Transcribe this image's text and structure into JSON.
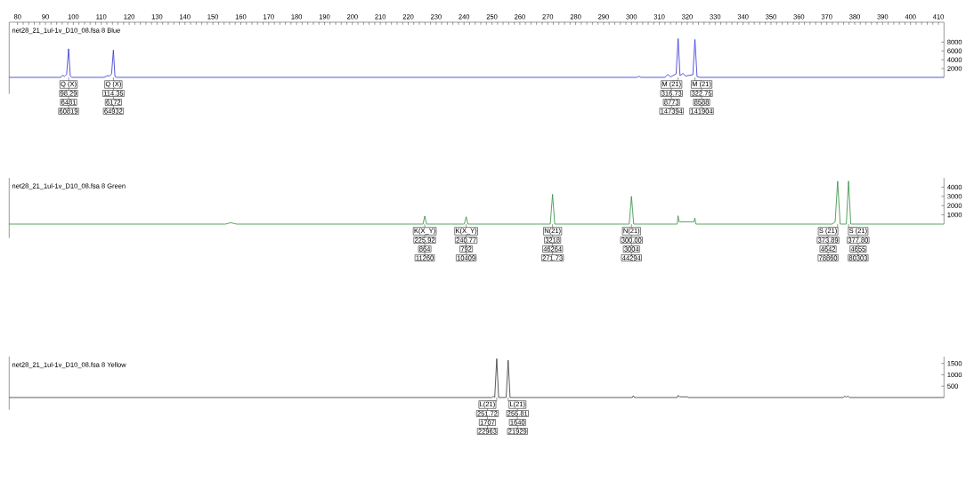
{
  "chart_data": [
    {
      "type": "line",
      "title": "net28_21_1ul-1v_D10_08.fsa  8 Blue",
      "color": "#2f2fd0",
      "marker": "none",
      "x": [
        77,
        95.5,
        96.2,
        96.8,
        97.6,
        98.29,
        98.9,
        99.5,
        111,
        112.3,
        113,
        113.7,
        114.35,
        114.9,
        115.5,
        302,
        302.6,
        303.4,
        312,
        313,
        314,
        316,
        316.73,
        317.4,
        318.5,
        319.3,
        322,
        322.75,
        323.5,
        324.5,
        412
      ],
      "values": [
        0,
        0,
        500,
        200,
        700,
        6481,
        300,
        0,
        0,
        400,
        300,
        800,
        6172,
        200,
        0,
        0,
        250,
        0,
        0,
        700,
        100,
        800,
        8773,
        400,
        900,
        300,
        600,
        8588,
        200,
        0,
        0
      ],
      "xlim": [
        77,
        412
      ],
      "xticks": [
        80,
        90,
        100,
        110,
        120,
        130,
        140,
        150,
        160,
        170,
        180,
        190,
        200,
        210,
        220,
        230,
        240,
        250,
        260,
        270,
        280,
        290,
        300,
        310,
        320,
        330,
        340,
        350,
        360,
        370,
        380,
        390,
        400,
        410
      ],
      "ylim": [
        0,
        12500
      ],
      "yticks": [
        2000,
        4000,
        6000,
        8000
      ],
      "annotations": [
        {
          "text": "Q (X)",
          "x": 98.29,
          "y": 0
        },
        {
          "text": "98.29",
          "x": 98.29,
          "y": 0
        },
        {
          "text": "6481",
          "x": 98.29,
          "y": 0
        },
        {
          "text": "60819",
          "x": 98.29,
          "y": 0
        },
        {
          "text": "Q (X)",
          "x": 114.35,
          "y": 0
        },
        {
          "text": "114.35",
          "x": 114.35,
          "y": 0
        },
        {
          "text": "6172",
          "x": 114.35,
          "y": 0
        },
        {
          "text": "64932",
          "x": 114.35,
          "y": 0
        },
        {
          "text": "M (21)",
          "x": 316.73,
          "y": 0
        },
        {
          "text": "316.73",
          "x": 316.73,
          "y": 0
        },
        {
          "text": "8773",
          "x": 316.73,
          "y": 0
        },
        {
          "text": "147394",
          "x": 316.73,
          "y": 0
        },
        {
          "text": "M (21)",
          "x": 322.75,
          "y": 0
        },
        {
          "text": "322.75",
          "x": 322.75,
          "y": 0
        },
        {
          "text": "8588",
          "x": 322.75,
          "y": 0
        },
        {
          "text": "141904",
          "x": 322.75,
          "y": 0
        }
      ]
    },
    {
      "type": "line",
      "title": "net28_21_1ul-1v_D10_08.fsa  8 Green",
      "color": "#2e8b3e",
      "marker": "none",
      "x": [
        77,
        154.5,
        156.4,
        158.5,
        225.3,
        225.92,
        226.6,
        240.1,
        240.77,
        241.4,
        270.9,
        271.73,
        272.5,
        299.2,
        300,
        300.8,
        316.4,
        316.7,
        317.1,
        322.4,
        322.7,
        323.1,
        372,
        373,
        373.89,
        374.8,
        377,
        377.8,
        378.6,
        412
      ],
      "values": [
        0,
        0,
        150,
        0,
        0,
        864,
        0,
        0,
        792,
        0,
        0,
        3218,
        0,
        0,
        3004,
        0,
        0,
        900,
        250,
        250,
        650,
        0,
        0,
        250,
        4642,
        0,
        0,
        4655,
        0,
        0
      ],
      "xlim": [
        77,
        412
      ],
      "ylim": [
        0,
        5000
      ],
      "yticks": [
        1000,
        2000,
        3000,
        4000
      ],
      "tick_labels": "y",
      "annotations": [
        {
          "text": "K(X_Y)",
          "x": 225.92,
          "y": 0
        },
        {
          "text": "225.92",
          "x": 225.92,
          "y": 0
        },
        {
          "text": "864",
          "x": 225.92,
          "y": 0
        },
        {
          "text": "11260",
          "x": 225.92,
          "y": 0
        },
        {
          "text": "K(X_Y)",
          "x": 240.77,
          "y": 0
        },
        {
          "text": "240.77",
          "x": 240.77,
          "y": 0
        },
        {
          "text": "792",
          "x": 240.77,
          "y": 0
        },
        {
          "text": "10409",
          "x": 240.77,
          "y": 0
        },
        {
          "text": "N(21)",
          "x": 271.73,
          "y": 0
        },
        {
          "text": "3218",
          "x": 271.73,
          "y": 0
        },
        {
          "text": "46264",
          "x": 271.73,
          "y": 0
        },
        {
          "text": "271.73",
          "x": 271.73,
          "y": 0
        },
        {
          "text": "N(21)",
          "x": 300.0,
          "y": 0
        },
        {
          "text": "300.00",
          "x": 300.0,
          "y": 0
        },
        {
          "text": "3004",
          "x": 300.0,
          "y": 0
        },
        {
          "text": "44294",
          "x": 300.0,
          "y": 0
        },
        {
          "text": "S (21)",
          "x": 373.89,
          "y": 0
        },
        {
          "text": "373.89",
          "x": 373.89,
          "y": 0
        },
        {
          "text": "4642",
          "x": 373.89,
          "y": 0
        },
        {
          "text": "78860",
          "x": 373.89,
          "y": 0
        },
        {
          "text": "S (21)",
          "x": 377.8,
          "y": 0
        },
        {
          "text": "377.80",
          "x": 377.8,
          "y": 0
        },
        {
          "text": "4655",
          "x": 377.8,
          "y": 0
        },
        {
          "text": "80303",
          "x": 377.8,
          "y": 0
        }
      ]
    },
    {
      "type": "line",
      "title": "net28_21_1ul-1v_D10_08.fsa  8 Yellow",
      "color": "#333333",
      "marker": "none",
      "x": [
        77,
        250,
        250.5,
        251.0,
        251.72,
        252.4,
        255.1,
        255.81,
        256.5,
        300.3,
        300.7,
        301.1,
        316.4,
        316.7,
        317.3,
        320,
        320.4,
        376,
        376.4,
        377,
        377.6,
        378.2,
        412
      ],
      "values": [
        0,
        0,
        60,
        0,
        1707,
        0,
        0,
        1640,
        0,
        0,
        80,
        0,
        0,
        90,
        30,
        30,
        0,
        0,
        60,
        20,
        60,
        0,
        0
      ],
      "xlim": [
        77,
        412
      ],
      "ylim": [
        0,
        1800
      ],
      "yticks": [
        500,
        1000,
        1500
      ],
      "tick_labels": "y",
      "annotations": [
        {
          "text": "L(21)",
          "x": 251.72,
          "y": 0
        },
        {
          "text": "251.72",
          "x": 251.72,
          "y": 0
        },
        {
          "text": "1707",
          "x": 251.72,
          "y": 0
        },
        {
          "text": "22963",
          "x": 251.72,
          "y": 0
        },
        {
          "text": "L(21)",
          "x": 255.81,
          "y": 0
        },
        {
          "text": "255.81",
          "x": 255.81,
          "y": 0
        },
        {
          "text": "1640",
          "x": 255.81,
          "y": 0
        },
        {
          "text": "21929",
          "x": 255.81,
          "y": 0
        }
      ]
    }
  ]
}
